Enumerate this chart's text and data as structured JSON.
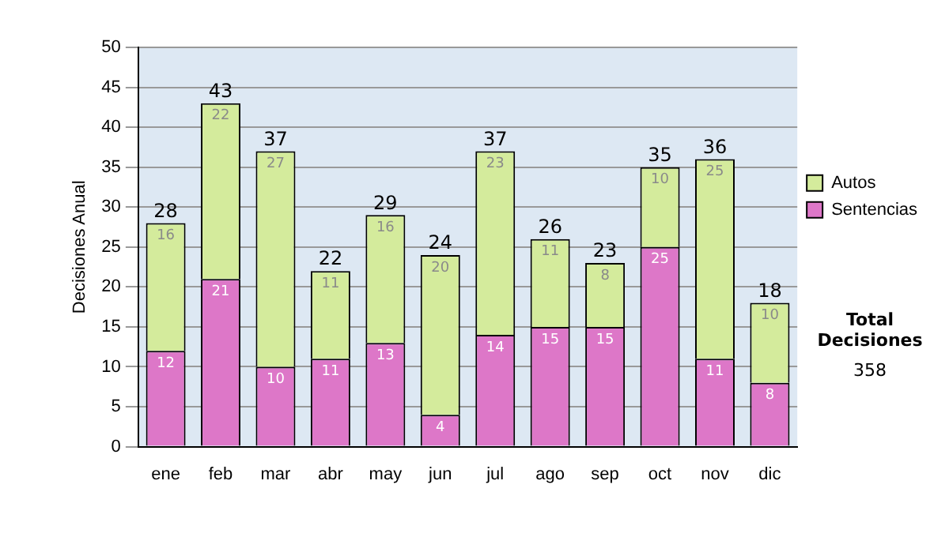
{
  "chart_data": {
    "type": "bar",
    "ylabel": "Decisiones Anual",
    "categories": [
      "ene",
      "feb",
      "mar",
      "abr",
      "may",
      "jun",
      "jul",
      "ago",
      "sep",
      "oct",
      "nov",
      "dic"
    ],
    "series": [
      {
        "name": "Sentencias",
        "color": "#dd77c8",
        "values": [
          12,
          21,
          10,
          11,
          13,
          4,
          14,
          15,
          15,
          25,
          11,
          8
        ]
      },
      {
        "name": "Autos",
        "color": "#d4eb9c",
        "values": [
          16,
          22,
          27,
          11,
          16,
          20,
          23,
          11,
          8,
          10,
          25,
          10
        ]
      }
    ],
    "stacked": true,
    "data_labels": true,
    "totals": [
      "28",
      "43",
      "37",
      "22",
      "29",
      "24",
      "37",
      "26",
      "23",
      "35",
      "36",
      "18"
    ],
    "ylim": [
      0,
      50
    ],
    "yticks": [
      0,
      5,
      10,
      15,
      20,
      25,
      30,
      35,
      40,
      45,
      50
    ],
    "grid": "y",
    "legend": "right",
    "annotations": [
      "Total Decisiones",
      "358"
    ]
  }
}
